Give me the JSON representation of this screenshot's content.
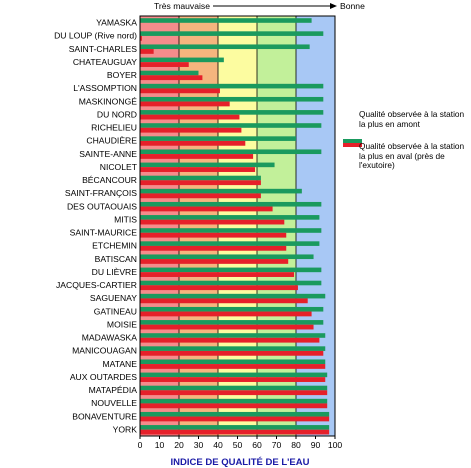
{
  "chart_data": {
    "type": "bar",
    "orientation": "horizontal",
    "xlabel": "INDICE DE QUALITÉ DE L'EAU",
    "xlim": [
      0,
      100
    ],
    "xticks": [
      0,
      10,
      20,
      30,
      40,
      50,
      60,
      70,
      80,
      90,
      100
    ],
    "scale_left_label": "Très mauvaise",
    "scale_right_label": "Bonne",
    "quality_bands": [
      {
        "from": 0,
        "to": 20,
        "color": "#f58c8c"
      },
      {
        "from": 20,
        "to": 40,
        "color": "#f5b57e"
      },
      {
        "from": 40,
        "to": 60,
        "color": "#fcfca0"
      },
      {
        "from": 60,
        "to": 80,
        "color": "#c2f09a"
      },
      {
        "from": 80,
        "to": 100,
        "color": "#a8c8f5"
      }
    ],
    "categories": [
      "YAMASKA",
      "DU LOUP (Rive nord)",
      "SAINT-CHARLES",
      "CHATEAUGUAY",
      "BOYER",
      "L'ASSOMPTION",
      "MASKINONGÉ",
      "DU NORD",
      "RICHELIEU",
      "CHAUDIÈRE",
      "SAINTE-ANNE",
      "NICOLET",
      "BÉCANCOUR",
      "SAINT-FRANÇOIS",
      "DES OUTAOUAIS",
      "MITIS",
      "SAINT-MAURICE",
      "ETCHEMIN",
      "BATISCAN",
      "DU LIÈVRE",
      "JACQUES-CARTIER",
      "SAGUENAY",
      "GATINEAU",
      "MOISIE",
      "MADAWASKA",
      "MANICOUAGAN",
      "MATANE",
      "AUX OUTARDES",
      "MATAPÉDIA",
      "NOUVELLE",
      "BONAVENTURE",
      "YORK"
    ],
    "series": [
      {
        "name": "Qualité observée à la station la plus en amont",
        "color": "#1a9a5e",
        "values": [
          88,
          94,
          87,
          43,
          30,
          94,
          94,
          94,
          93,
          80,
          93,
          69,
          62,
          83,
          93,
          92,
          93,
          92,
          89,
          93,
          93,
          95,
          94,
          94,
          95,
          95,
          95,
          96,
          96,
          96,
          97,
          97
        ]
      },
      {
        "name": "Qualité observée à la station la plus en aval (près de l'exutoire)",
        "color": "#e6202a",
        "values": [
          0,
          1,
          7,
          25,
          32,
          41,
          46,
          51,
          52,
          54,
          58,
          59,
          62,
          62,
          68,
          74,
          75,
          75,
          76,
          79,
          81,
          86,
          88,
          89,
          92,
          94,
          95,
          95,
          96,
          96,
          97,
          97
        ]
      }
    ],
    "legend_position": "right"
  }
}
